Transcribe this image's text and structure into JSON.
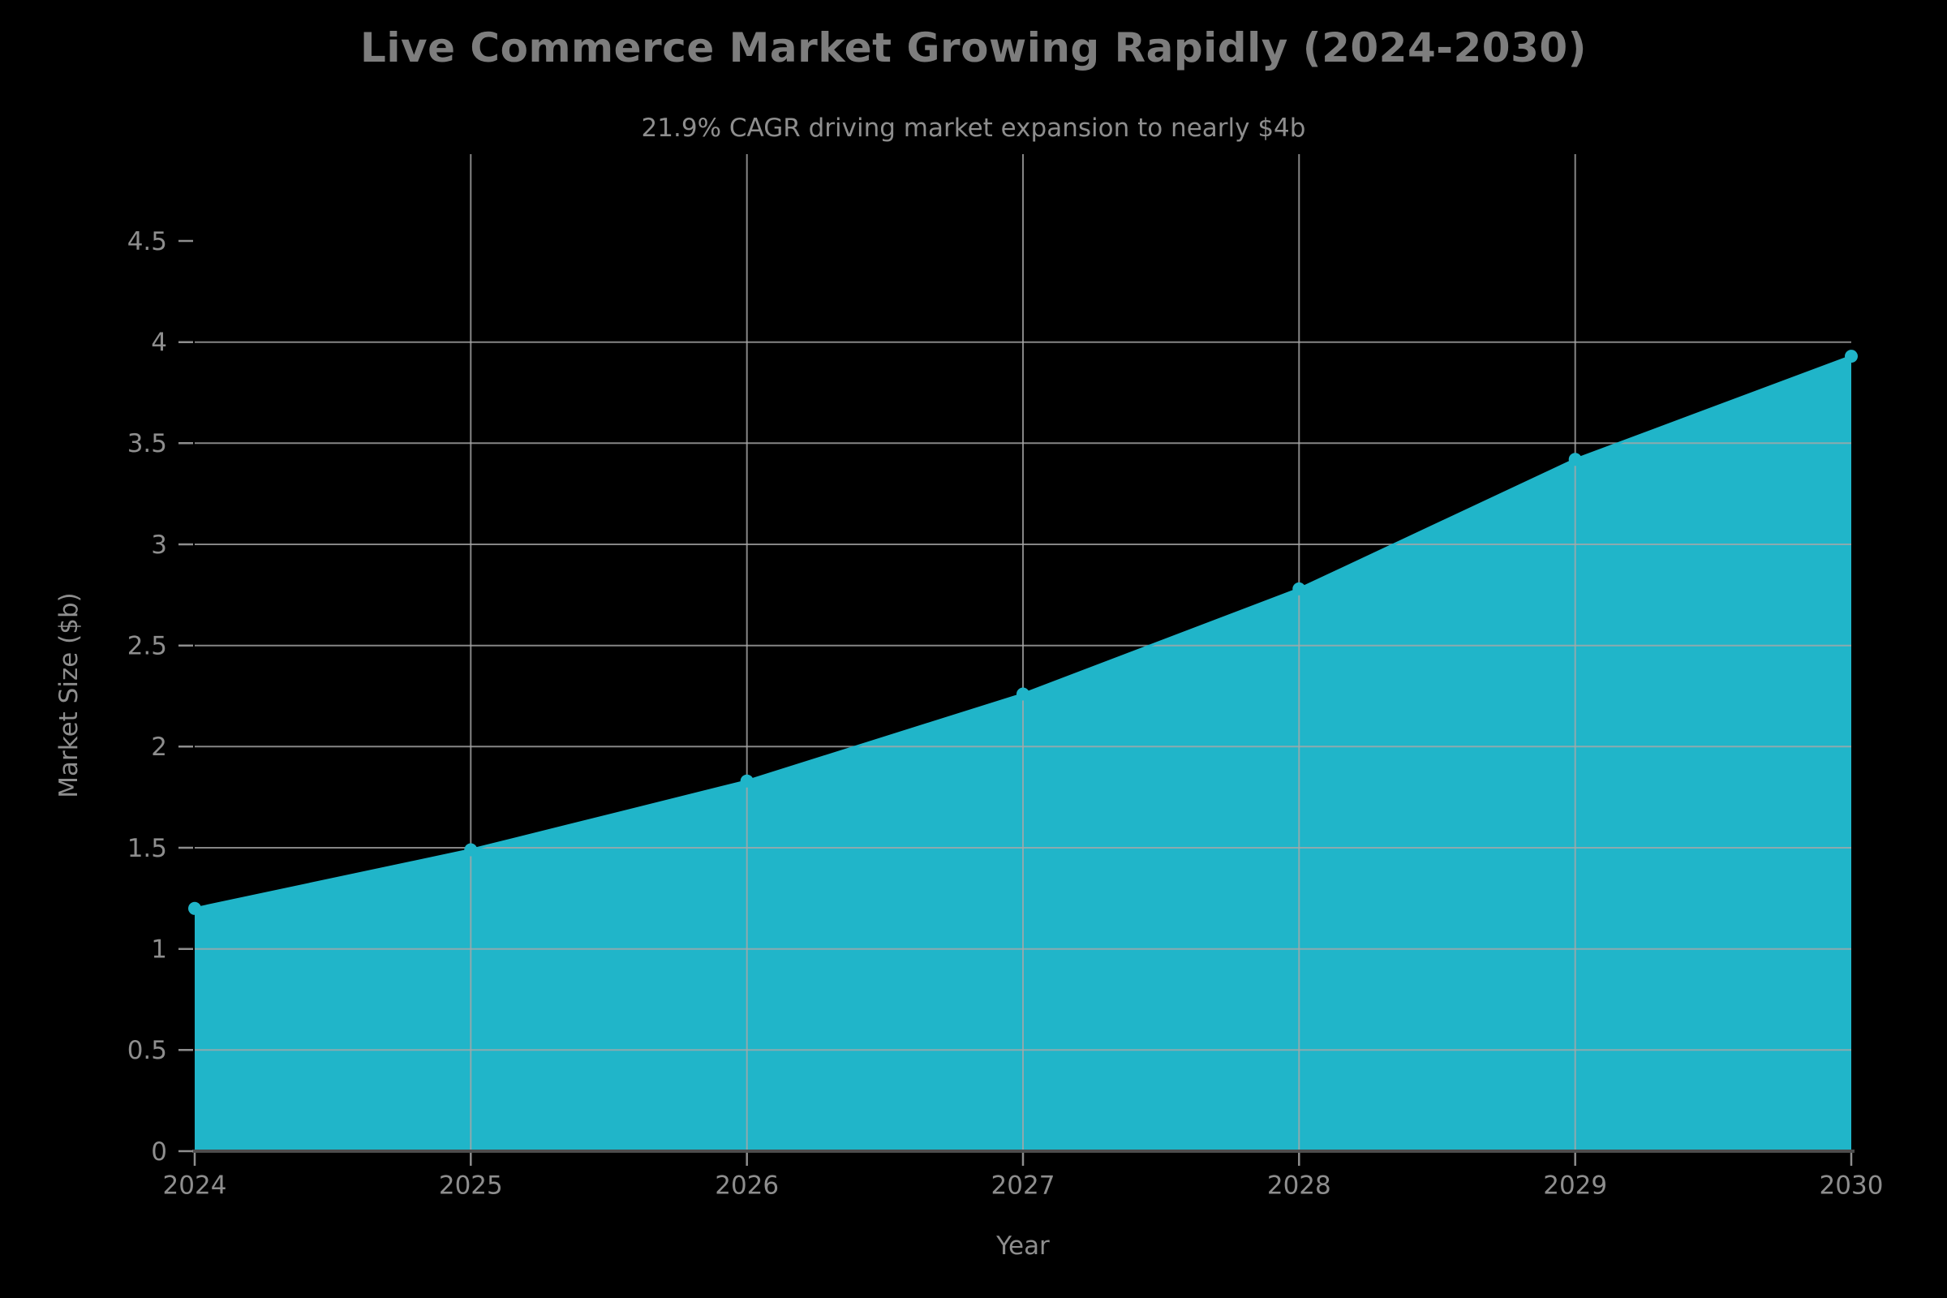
{
  "chart_data": {
    "type": "area",
    "title": "Live Commerce Market Growing Rapidly (2024-2030)",
    "subtitle": "21.9% CAGR driving market expansion to nearly $4b",
    "xlabel": "Year",
    "ylabel": "Market Size ($b)",
    "x": [
      2024,
      2025,
      2026,
      2027,
      2028,
      2029,
      2030
    ],
    "series": [
      {
        "name": "Market Size ($b)",
        "values": [
          1.2,
          1.49,
          1.83,
          2.26,
          2.78,
          3.42,
          3.93
        ]
      }
    ],
    "ylim": [
      0,
      4.5
    ],
    "y_ticks": [
      0,
      0.5,
      1,
      1.5,
      2,
      2.5,
      3,
      3.5,
      4,
      4.5
    ],
    "grid": "on",
    "legend": "none",
    "colors": {
      "background": "#000000",
      "fill": "#20b5c9",
      "line": "#20b5c9",
      "marker": "#20b5c9",
      "grid": "#a8a8a8",
      "axis_line": "#4d4d4d",
      "tick_label": "#8e8e8e",
      "title": "#7d7d7d"
    }
  }
}
